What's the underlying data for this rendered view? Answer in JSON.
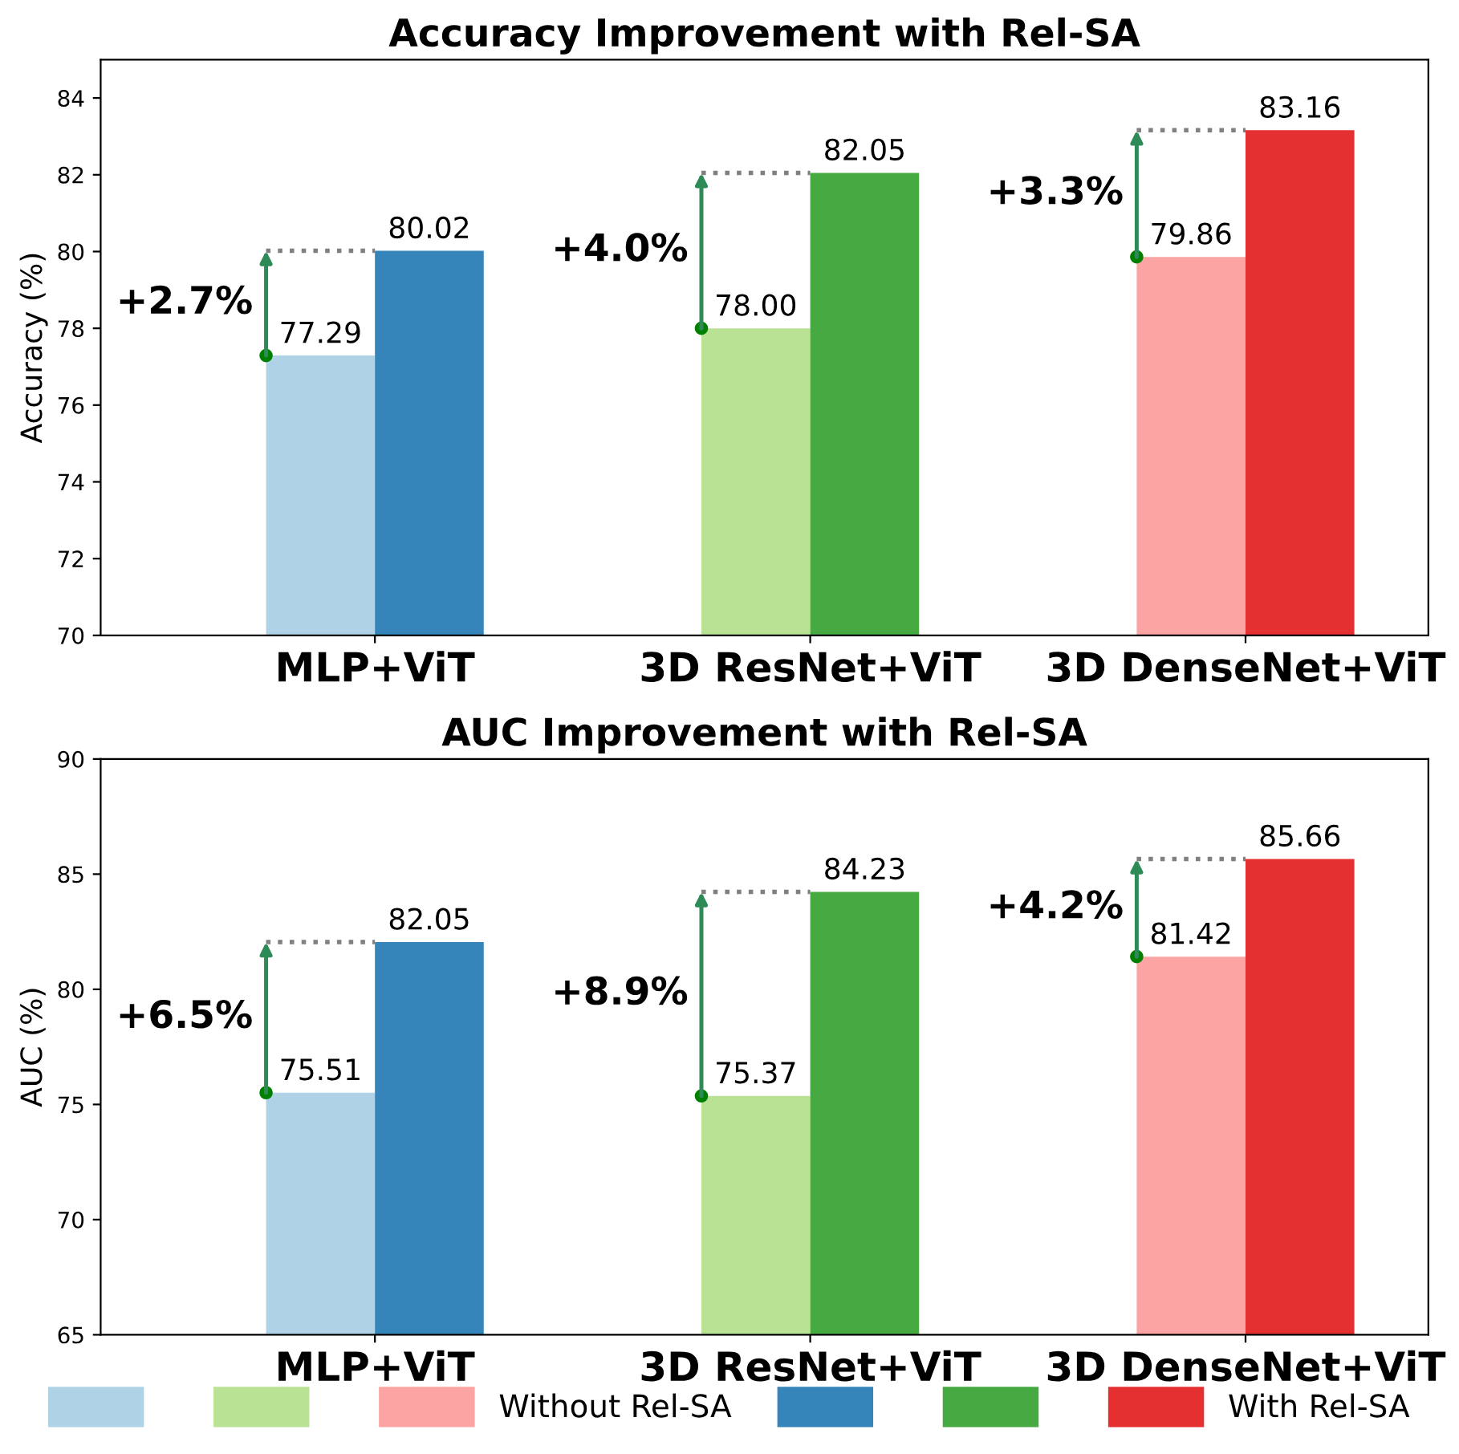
{
  "chart_data": [
    {
      "type": "bar",
      "title": "Accuracy Improvement with Rel-SA",
      "ylabel": "Accuracy (%)",
      "categories": [
        "MLP+ViT",
        "3D ResNet+ViT",
        "3D DenseNet+ViT"
      ],
      "series": [
        {
          "name": "Without Rel-SA",
          "colors": [
            "#afd2e6",
            "#bae295",
            "#fba4a3"
          ],
          "values": [
            77.29,
            78.0,
            79.86
          ],
          "value_labels": [
            "77.29",
            "78.00",
            "79.86"
          ]
        },
        {
          "name": "With Rel-SA",
          "colors": [
            "#3585bb",
            "#47a941",
            "#e53032"
          ],
          "values": [
            80.02,
            82.05,
            83.16
          ],
          "value_labels": [
            "80.02",
            "82.05",
            "83.16"
          ]
        }
      ],
      "ylim": [
        70,
        85
      ],
      "yticks": [
        70,
        72,
        74,
        76,
        78,
        80,
        82,
        84
      ],
      "annotations": [
        {
          "text": "+2.7%",
          "x": "MLP+ViT",
          "y": 80.02
        },
        "+4.0%",
        {
          "text": "+3.3%",
          "x": "3D DenseNet+ViT",
          "y": 83.16
        }
      ],
      "legend": "bottom"
    },
    {
      "type": "bar",
      "title": "AUC Improvement with Rel-SA",
      "ylabel": "AUC (%)",
      "categories": [
        "MLP+ViT",
        "3D ResNet+ViT",
        "3D DenseNet+ViT"
      ],
      "series": [
        {
          "colors": [
            "#afd2e6",
            "#bae295",
            "#fba4a3"
          ],
          "values": [
            75.51,
            75.37,
            81.42
          ],
          "value_labels": [
            "75.51",
            "75.37",
            "81.42"
          ]
        },
        {
          "colors": [
            "#3585bb",
            "#47a941",
            "#e53032"
          ],
          "values": [
            82.05,
            84.23,
            85.66
          ],
          "value_labels": [
            "82.05",
            "84.23",
            "85.66"
          ]
        }
      ],
      "ylim": [
        65,
        90
      ],
      "yticks": [
        65,
        70,
        75,
        80,
        85,
        90
      ],
      "annotations": [
        "+6.5%",
        "+8.9%",
        {
          "text": "+4.2%",
          "x": "3D DenseNet+ViT",
          "y": 85.66
        }
      ]
    }
  ]
}
